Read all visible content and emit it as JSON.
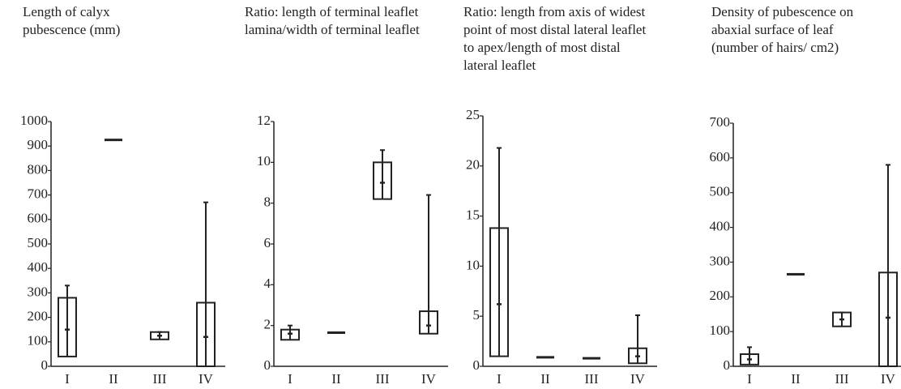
{
  "chart_data": [
    {
      "type": "box",
      "title": "Length of calyx pubescence (mm)",
      "categories": [
        "I",
        "II",
        "III",
        "IV"
      ],
      "low": [
        40,
        925,
        110,
        0
      ],
      "q1": [
        40,
        925,
        110,
        0
      ],
      "median": [
        150,
        925,
        125,
        120
      ],
      "q3": [
        280,
        925,
        140,
        260
      ],
      "high": [
        330,
        925,
        140,
        670
      ],
      "ylim": [
        0,
        1000
      ],
      "yticks": [
        0,
        100,
        200,
        300,
        400,
        500,
        600,
        700,
        800,
        900,
        1000
      ],
      "color": "#222222"
    },
    {
      "type": "box",
      "title": "Ratio: length of terminal leaflet lamina/width of terminal leaflet",
      "categories": [
        "I",
        "II",
        "III",
        "IV"
      ],
      "low": [
        1.3,
        1.65,
        8.2,
        1.6
      ],
      "q1": [
        1.3,
        1.65,
        8.2,
        1.6
      ],
      "median": [
        1.6,
        1.65,
        9.0,
        2.0
      ],
      "q3": [
        1.8,
        1.65,
        10,
        2.7
      ],
      "high": [
        2.0,
        1.65,
        10.6,
        8.4
      ],
      "ylim": [
        0,
        12
      ],
      "yticks": [
        0,
        2,
        4,
        6,
        8,
        10,
        12
      ],
      "color": "#222222"
    },
    {
      "type": "box",
      "title": "Ratio: length from axis of widest point of most distal lateral leaflet to apex/length of most distal lateral leaflet",
      "categories": [
        "I",
        "II",
        "III",
        "IV"
      ],
      "low": [
        1,
        0.9,
        0.8,
        0.3
      ],
      "q1": [
        1,
        0.9,
        0.8,
        0.3
      ],
      "median": [
        6.2,
        0.9,
        0.8,
        1.0
      ],
      "q3": [
        13.8,
        0.9,
        0.8,
        1.8
      ],
      "high": [
        21.8,
        0.9,
        0.8,
        5.1
      ],
      "ylim": [
        0,
        25
      ],
      "yticks": [
        0,
        5,
        10,
        15,
        20,
        25
      ],
      "color": "#222222"
    },
    {
      "type": "box",
      "title": "Density of pubescence on abaxial surface of leaf (number of hairs/ cm2)",
      "categories": [
        "I",
        "II",
        "III",
        "IV"
      ],
      "low": [
        5,
        265,
        115,
        0
      ],
      "q1": [
        5,
        265,
        115,
        0
      ],
      "median": [
        20,
        265,
        135,
        140
      ],
      "q3": [
        35,
        265,
        155,
        270
      ],
      "high": [
        55,
        265,
        155,
        580
      ],
      "ylim": [
        0,
        700
      ],
      "yticks": [
        0,
        100,
        200,
        300,
        400,
        500,
        600,
        700
      ],
      "color": "#222222"
    }
  ]
}
